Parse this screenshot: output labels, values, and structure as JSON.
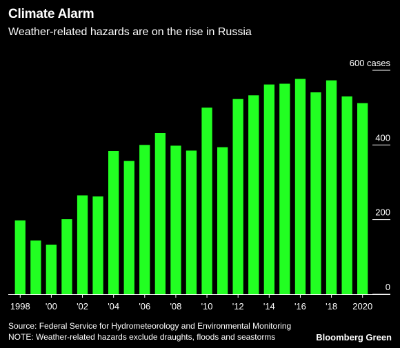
{
  "header": {
    "title": "Climate Alarm",
    "subtitle": "Weather-related hazards are on the rise in Russia"
  },
  "footer": {
    "source": "Source: Federal Service for Hydrometeorology and Environmental Monitoring",
    "note": "NOTE: Weather-related hazards exclude draughts, floods and seastorms",
    "brand": "Bloomberg Green"
  },
  "colors": {
    "bar": "#22ff22",
    "background": "#000000",
    "gridline": "#ffffff"
  },
  "chart_data": {
    "type": "bar",
    "title": "Climate Alarm",
    "subtitle": "Weather-related hazards are on the rise in Russia",
    "categories": [
      "1998",
      "1999",
      "2000",
      "2001",
      "2002",
      "2003",
      "2004",
      "2005",
      "2006",
      "2007",
      "2008",
      "2009",
      "2010",
      "2011",
      "2012",
      "2013",
      "2014",
      "2015",
      "2016",
      "2017",
      "2018",
      "2019",
      "2020"
    ],
    "x_tick_labels": [
      "1998",
      "",
      "'00",
      "",
      "'02",
      "",
      "'04",
      "",
      "'06",
      "",
      "'08",
      "",
      "'10",
      "",
      "'12",
      "",
      "'14",
      "",
      "'16",
      "",
      "'18",
      "",
      "2020"
    ],
    "values": [
      198,
      144,
      133,
      201,
      265,
      262,
      384,
      357,
      400,
      432,
      398,
      385,
      500,
      394,
      523,
      533,
      562,
      564,
      577,
      541,
      573,
      530,
      512
    ],
    "y_ticks": [
      0,
      200,
      400,
      600
    ],
    "y_tick_labels": [
      "0",
      "200",
      "400",
      "600 cases"
    ],
    "ylim": [
      0,
      600
    ],
    "xlabel": "",
    "ylabel": "",
    "grid": false,
    "legend": "none"
  }
}
